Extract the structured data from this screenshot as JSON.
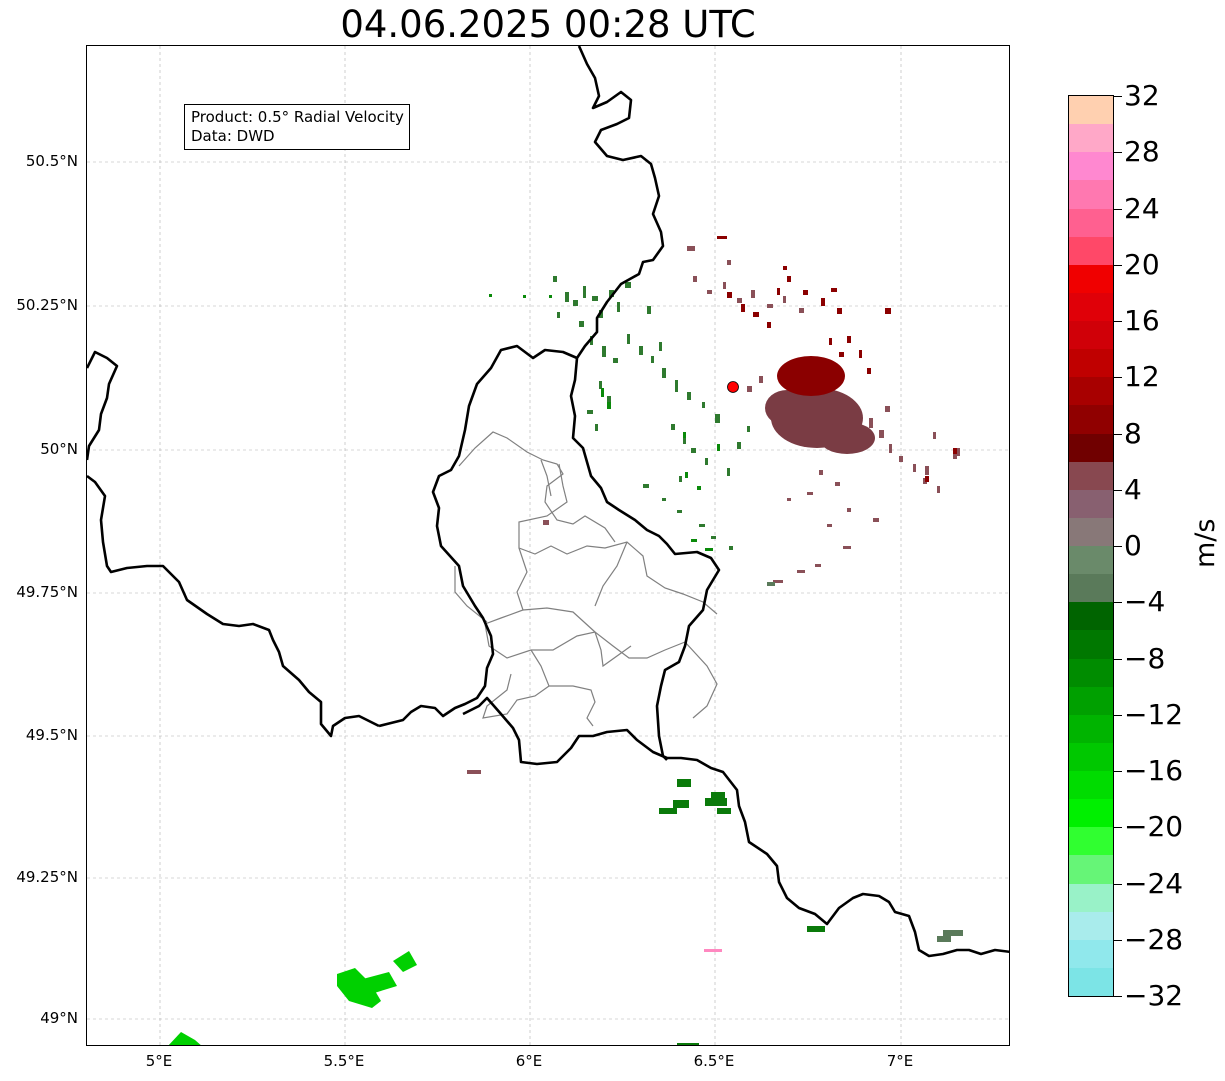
{
  "title": "04.06.2025 00:28 UTC",
  "info_box": {
    "line1": "Product: 0.5° Radial Velocity",
    "line2": "Data: DWD"
  },
  "map": {
    "lat_ticks": [
      "50.5°N",
      "50.25°N",
      "50°N",
      "49.75°N",
      "49.5°N",
      "49.25°N",
      "49°N"
    ],
    "lon_ticks": [
      "5°E",
      "5.5°E",
      "6°E",
      "6.5°E",
      "7°E"
    ],
    "extent": {
      "lon_min": 4.8,
      "lon_max": 7.3,
      "lat_min": 48.95,
      "lat_max": 50.7
    },
    "radar_site": {
      "lon": 6.55,
      "lat": 50.11,
      "color": "#ff0000"
    }
  },
  "colorbar": {
    "unit": "m/s",
    "min": -32,
    "max": 32,
    "tick_labels": [
      "32",
      "28",
      "24",
      "20",
      "16",
      "12",
      "8",
      "4",
      "0",
      "−4",
      "−8",
      "−12",
      "−16",
      "−20",
      "−24",
      "−28",
      "−32"
    ],
    "colors_top_to_bottom": [
      "#ffd0b0",
      "#ffa8c8",
      "#ff88d0",
      "#ff78b0",
      "#ff6090",
      "#ff4868",
      "#f00000",
      "#e00008",
      "#d00008",
      "#c00000",
      "#a80000",
      "#900000",
      "#700000",
      "#884850",
      "#886070",
      "#887878",
      "#6a8a6a",
      "#5a7a5a",
      "#006400",
      "#007800",
      "#008c00",
      "#00a000",
      "#00b400",
      "#00c800",
      "#00dc00",
      "#00f000",
      "#30ff30",
      "#66f577",
      "#99f2c8",
      "#a9ecec",
      "#90e8ec",
      "#7ce4e6"
    ]
  }
}
